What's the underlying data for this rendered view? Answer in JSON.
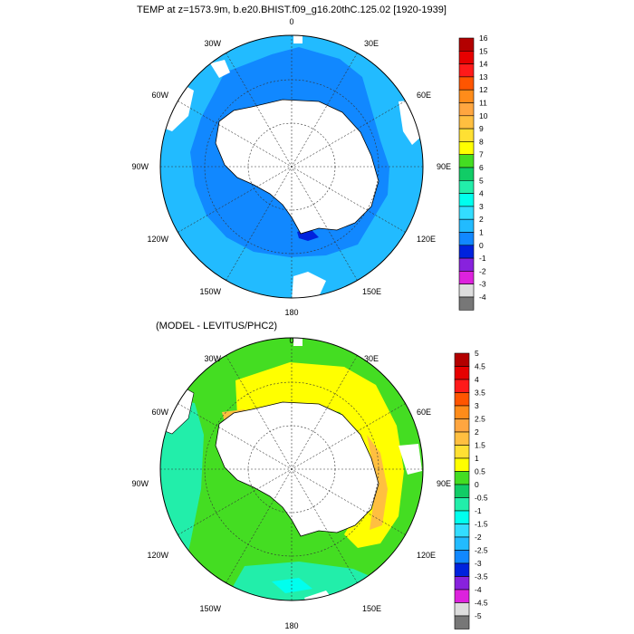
{
  "panel1": {
    "title": "TEMP at z=1573.9m, b.e20.BHIST.f09_g16.20thC.125.02 [1920-1939]",
    "lon_labels": {
      "0": "0",
      "30E": "30E",
      "60E": "60E",
      "90E": "90E",
      "120E": "120E",
      "150E": "150E",
      "180": "180",
      "150W": "150W",
      "120W": "120W",
      "90W": "90W",
      "60W": "60W",
      "30W": "30W"
    },
    "colorbar": {
      "labels": [
        "16",
        "15",
        "14",
        "13",
        "12",
        "11",
        "10",
        "9",
        "8",
        "7",
        "6",
        "5",
        "4",
        "3",
        "2",
        "1",
        "0",
        "-1",
        "-2",
        "-3",
        "-4"
      ],
      "colors": [
        "#b30000",
        "#e60000",
        "#ff1a1a",
        "#ff5500",
        "#ff8c1a",
        "#ffa640",
        "#ffbf40",
        "#ffe033",
        "#ffff00",
        "#44dd22",
        "#11cc66",
        "#22eeaa",
        "#00ffee",
        "#33ddff",
        "#22bbff",
        "#1188ff",
        "#0022dd",
        "#8822dd",
        "#dd22dd",
        "#dddddd",
        "#777777"
      ]
    }
  },
  "panel2": {
    "title": "(MODEL - LEVITUS/PHC2)",
    "lon_labels": {
      "0": "0",
      "30E": "30E",
      "60E": "60E",
      "90E": "90E",
      "120E": "120E",
      "150E": "150E",
      "180": "180",
      "150W": "150W",
      "120W": "120W",
      "90W": "90W",
      "60W": "60W",
      "30W": "30W"
    },
    "colorbar": {
      "labels": [
        "5",
        "4.5",
        "4",
        "3.5",
        "3",
        "2.5",
        "2",
        "1.5",
        "1",
        "0.5",
        "0",
        "-0.5",
        "-1",
        "-1.5",
        "-2",
        "-2.5",
        "-3",
        "-3.5",
        "-4",
        "-4.5",
        "-5"
      ],
      "colors": [
        "#b30000",
        "#e60000",
        "#ff1a1a",
        "#ff5500",
        "#ff8c1a",
        "#ffa640",
        "#ffbf40",
        "#ffe033",
        "#ffff00",
        "#44dd22",
        "#11cc66",
        "#22eeaa",
        "#00ffee",
        "#33ddff",
        "#22bbff",
        "#1188ff",
        "#0022dd",
        "#8822dd",
        "#dd22dd",
        "#dddddd",
        "#777777"
      ]
    }
  },
  "colors": {
    "p1_outer": "#22bbff",
    "p1_inner": "#1188ff",
    "p1_deep": "#0022dd",
    "p2_base": "#44dd22",
    "p2_warm": "#ffff00",
    "p2_warmer": "#ffbf40",
    "p2_cool": "#22eeaa",
    "p2_cooler": "#00ffee",
    "land": "#ffffff"
  }
}
